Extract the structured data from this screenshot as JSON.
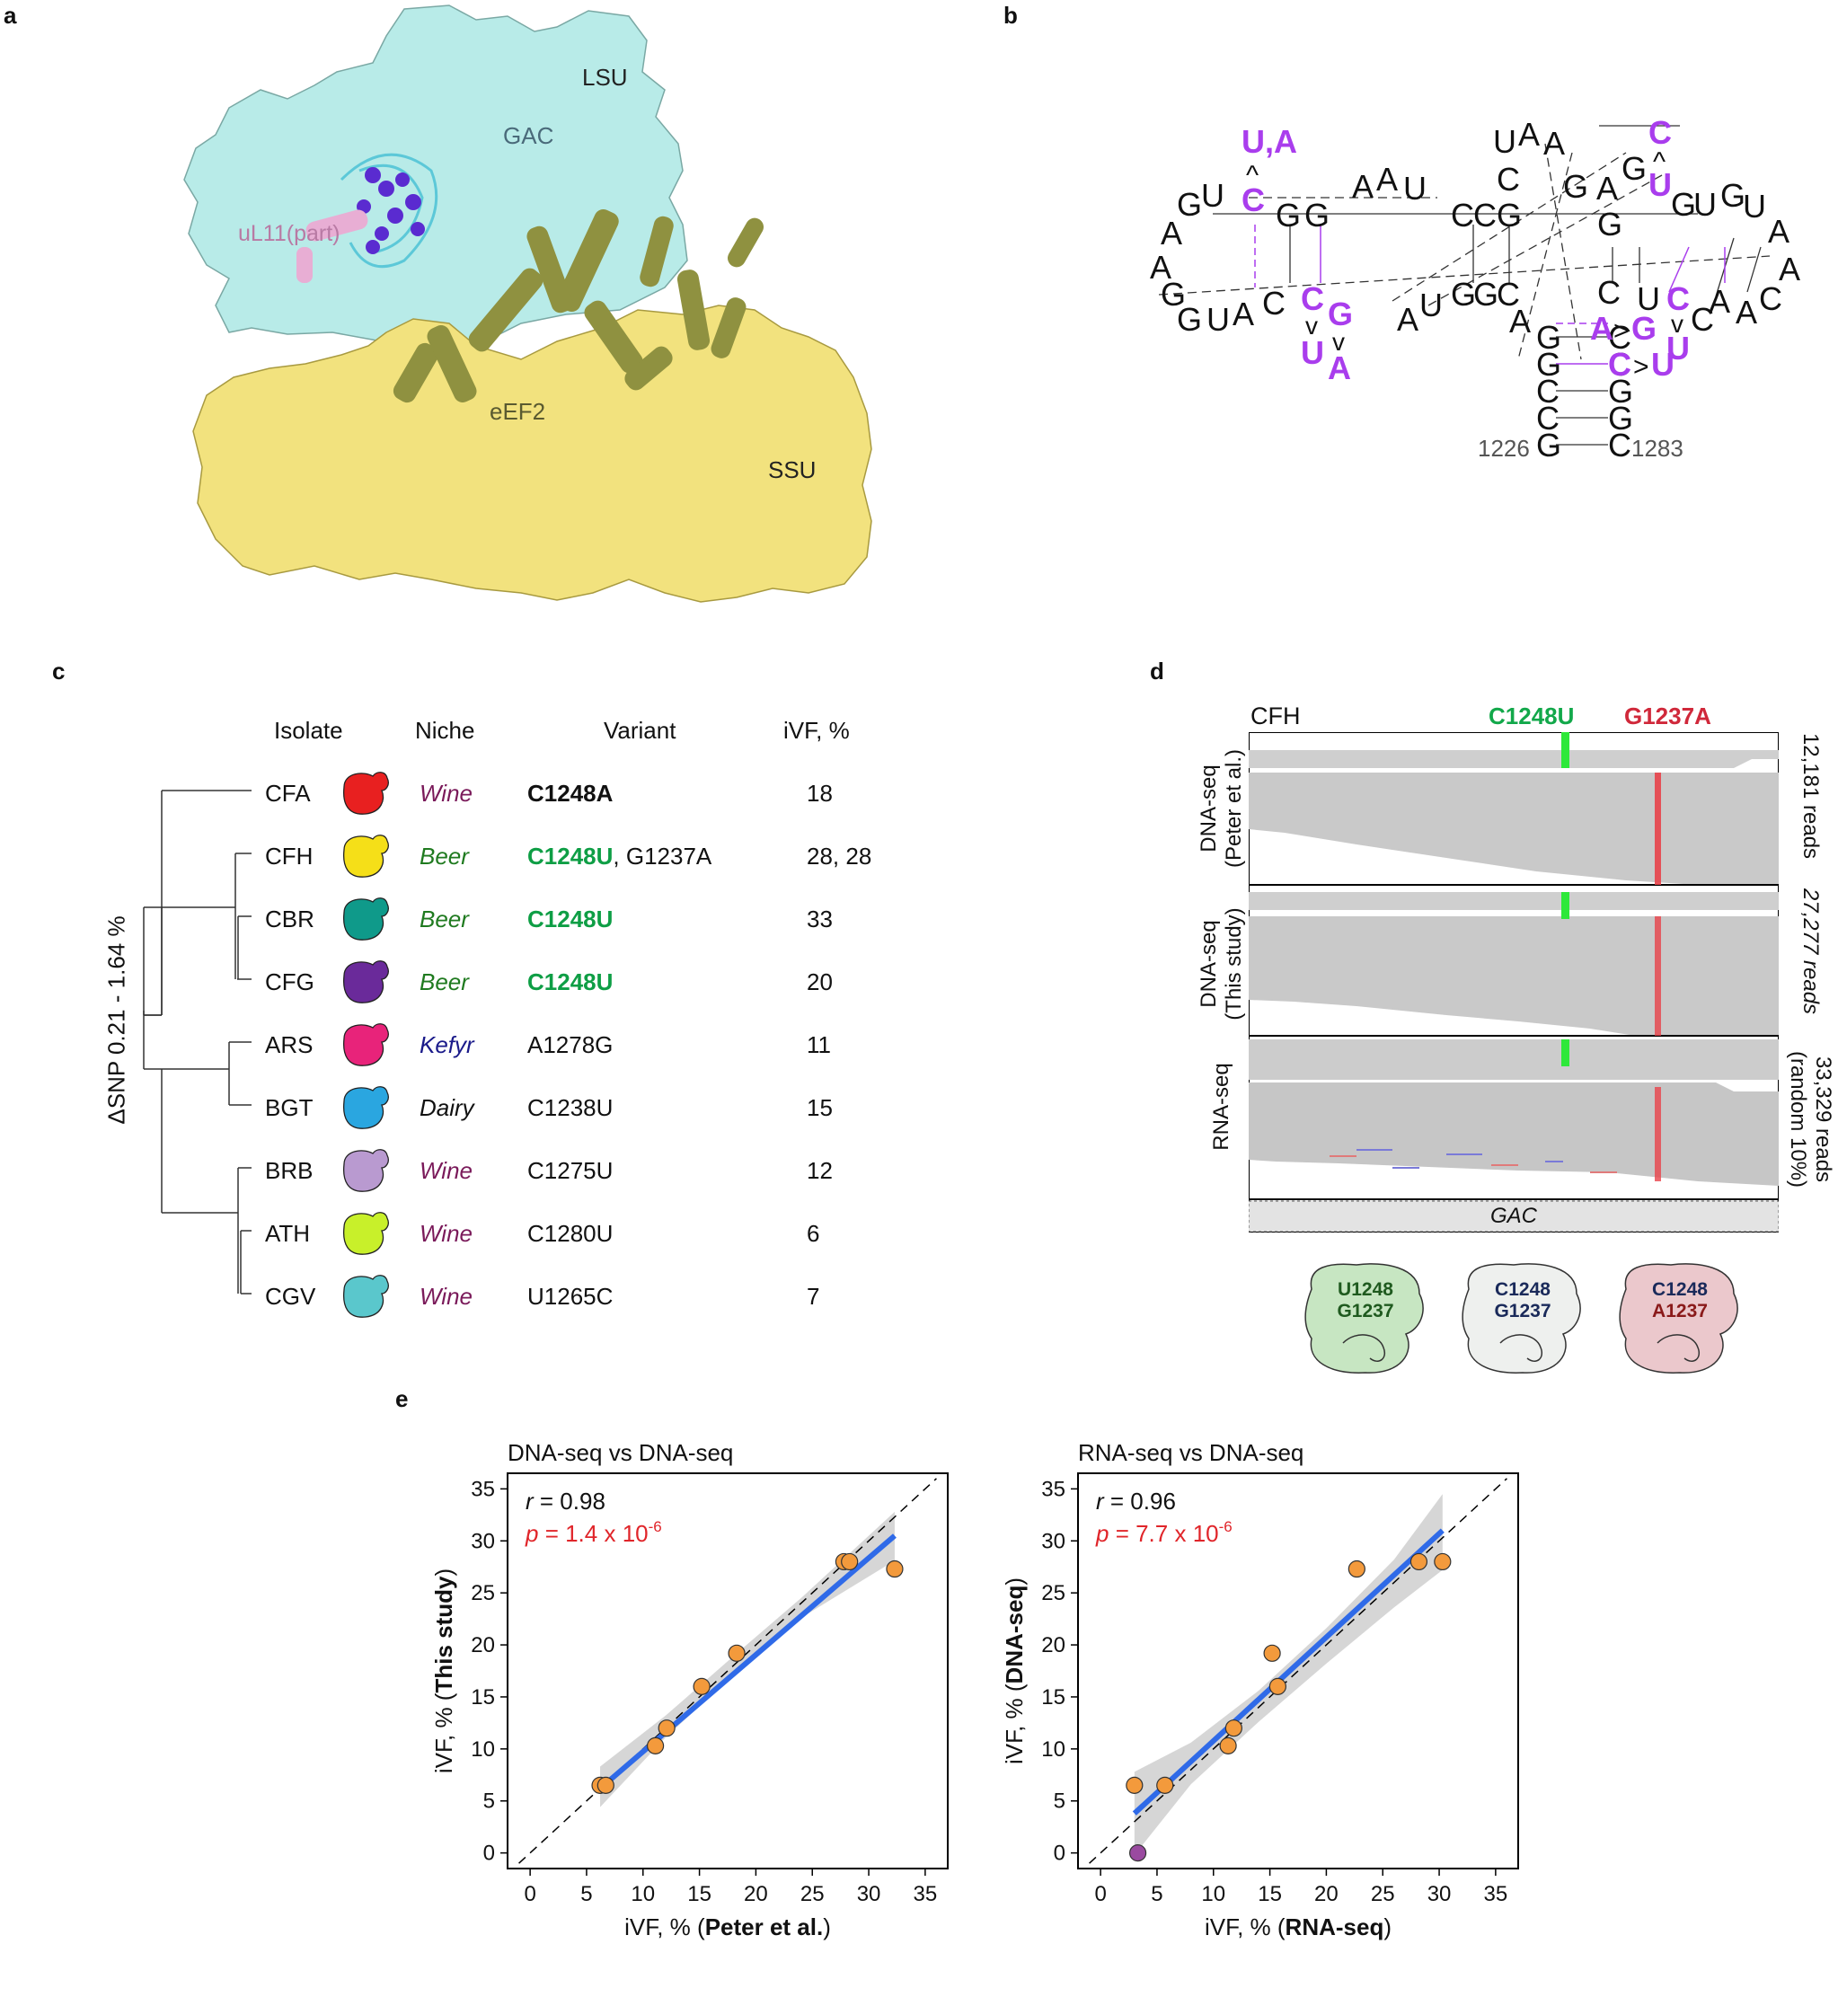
{
  "panel_labels": {
    "a": "a",
    "b": "b",
    "c": "c",
    "d": "d",
    "e": "e"
  },
  "panel_a": {
    "labels": {
      "lsu": "LSU",
      "gac": "GAC",
      "ul11": "uL11(part)",
      "eef2": "eEF2",
      "ssu": "SSU"
    },
    "colors": {
      "lsu": "#b8ebe8",
      "ssu": "#f2e27e",
      "eef2": "#8f9140",
      "ul11": "#e8aed4",
      "gac": "#5a2bd0"
    }
  },
  "panel_b": {
    "left_stem_top": [
      "G",
      "G"
    ],
    "mut1_top": "U,A",
    "mut1_caret": "^",
    "mut1_base": "C",
    "loop_left": [
      "G",
      "U",
      "A",
      "A",
      "G",
      "G",
      "U",
      "A",
      "C"
    ],
    "top_run": [
      "A",
      "A",
      "U"
    ],
    "mid_stem": [
      "C",
      "C",
      "G"
    ],
    "mid_stem_bottom": [
      "G",
      "G",
      "C"
    ],
    "bottom_run": [
      "U",
      "A"
    ],
    "mut2_base": "C",
    "mut2_caret": "v",
    "mut2_var": "U",
    "mut3_base": "G",
    "mut3_caret": "v",
    "mut3_var": "A",
    "hairpin_top": [
      "U",
      "A",
      "A",
      "C",
      "G"
    ],
    "right_top": [
      "A",
      "G"
    ],
    "mut4_top": "C",
    "mut4_caret": "^",
    "mut4_base": "U",
    "right_run": [
      "G",
      "U",
      "G",
      "U"
    ],
    "right_loop": [
      "A",
      "A",
      "C",
      "A",
      "A",
      "C"
    ],
    "right_inner": [
      "G",
      "C",
      "U"
    ],
    "mut5_base": "C",
    "mut5_caret": "v",
    "mut5_var": "U",
    "mut6": {
      "from": "A",
      "sym": ">",
      "to": "G"
    },
    "mut7": {
      "from": "C",
      "sym": ">",
      "to": "U"
    },
    "bottom_stem_left": [
      "A",
      "G",
      "G",
      "C",
      "C",
      "G"
    ],
    "bottom_stem_right": [
      "C",
      "C",
      "G",
      "G",
      "C"
    ],
    "num_left": "1226",
    "num_right": "1283",
    "colors": {
      "mutation": "#a93ded",
      "text": "#111111"
    }
  },
  "panel_c": {
    "headers": {
      "isolate": "Isolate",
      "niche": "Niche",
      "variant": "Variant",
      "ivf": "iVF, %"
    },
    "axis_label": "ΔSNP 0.21 - 1.64 %",
    "rows": [
      {
        "isolate": "CFA",
        "color": "#e82020",
        "niche": "Wine",
        "niche_color": "#7a1a5a",
        "v1": "C1248A",
        "v1_color": "#111111",
        "v2": "",
        "ivf": "18"
      },
      {
        "isolate": "CFH",
        "color": "#f5df18",
        "niche": "Beer",
        "niche_color": "#1f7a1f",
        "v1": "C1248U",
        "v1_color": "#0e9e45",
        "v2": ", G1237A",
        "ivf": "28, 28"
      },
      {
        "isolate": "CBR",
        "color": "#0f9a8a",
        "niche": "Beer",
        "niche_color": "#1f7a1f",
        "v1": "C1248U",
        "v1_color": "#0e9e45",
        "v2": "",
        "ivf": "33"
      },
      {
        "isolate": "CFG",
        "color": "#6a2a9a",
        "niche": "Beer",
        "niche_color": "#1f7a1f",
        "v1": "C1248U",
        "v1_color": "#0e9e45",
        "v2": "",
        "ivf": "20"
      },
      {
        "isolate": "ARS",
        "color": "#e8237a",
        "niche": "Kefyr",
        "niche_color": "#1a1a8a",
        "v1": "A1278G",
        "v1_color": "#111111",
        "v2": "",
        "ivf": "11"
      },
      {
        "isolate": "BGT",
        "color": "#2aa6e0",
        "niche": "Dairy",
        "niche_color": "#111111",
        "v1": "C1238U",
        "v1_color": "#111111",
        "v2": "",
        "ivf": "15"
      },
      {
        "isolate": "BRB",
        "color": "#b99ad0",
        "niche": "Wine",
        "niche_color": "#7a1a5a",
        "v1": "C1275U",
        "v1_color": "#111111",
        "v2": "",
        "ivf": "12"
      },
      {
        "isolate": "ATH",
        "color": "#c8f02a",
        "niche": "Wine",
        "niche_color": "#7a1a5a",
        "v1": "C1280U",
        "v1_color": "#111111",
        "v2": "",
        "ivf": "6"
      },
      {
        "isolate": "CGV",
        "color": "#5ac7cc",
        "niche": "Wine",
        "niche_color": "#7a1a5a",
        "v1": "U1265C",
        "v1_color": "#111111",
        "v2": "",
        "ivf": "7"
      }
    ]
  },
  "panel_d": {
    "strain": "CFH",
    "mark1": "C1248U",
    "mark1_color": "#12a84a",
    "mark2": "G1237A",
    "mark2_color": "#d0283a",
    "tracks": [
      {
        "label1": "DNA-seq",
        "label2": "(Peter et al.)",
        "reads1": "12,181 reads",
        "reads2": ""
      },
      {
        "label1": "DNA-seq",
        "label2": "(This study)",
        "reads1": "27,277 reads",
        "reads2": ""
      },
      {
        "label1": "RNA-seq",
        "label2": "",
        "reads1": "33,329 reads",
        "reads2": "(random 10%)"
      }
    ],
    "region": "GAC",
    "ribosomes": [
      {
        "line1": "U1248",
        "line2": "G1237",
        "fill": "#c7e6c2",
        "c1": "#1f5a1f",
        "c2": "#1f5a1f"
      },
      {
        "line1": "C1248",
        "line2": "G1237",
        "fill": "#eef0ee",
        "c1": "#1a2a5a",
        "c2": "#1a2a5a"
      },
      {
        "line1": "C1248",
        "line2": "A1237",
        "fill": "#ebc8cc",
        "c1": "#1a2a5a",
        "c2": "#8a1a1a"
      }
    ]
  },
  "panel_e": {
    "chart_data": [
      {
        "type": "scatter",
        "title": "DNA-seq vs DNA-seq",
        "xlabel_pre": "iVF, % (",
        "xlabel_bold": "Peter et al.",
        "xlabel_post": ")",
        "ylabel_pre": "iVF, % (",
        "ylabel_bold": "This study",
        "ylabel_post": ")",
        "xlim": [
          -2,
          37
        ],
        "ylim": [
          -1.5,
          36.5
        ],
        "ticks": [
          0,
          5,
          10,
          15,
          20,
          25,
          30,
          35
        ],
        "r_label": "r",
        "r_value": " = 0.98",
        "p_label": "p",
        "p_value": " = 1.4 x 10",
        "p_exp": "-6",
        "points": [
          [
            6.2,
            6.5
          ],
          [
            6.7,
            6.5
          ],
          [
            11.1,
            10.3
          ],
          [
            12.1,
            12
          ],
          [
            15.2,
            16
          ],
          [
            18.3,
            19.2
          ],
          [
            27.8,
            28
          ],
          [
            28.3,
            28
          ],
          [
            32.3,
            27.3
          ]
        ],
        "special_points": [],
        "fit": [
          [
            6.2,
            6.2
          ],
          [
            32.3,
            30.5
          ]
        ],
        "ci_upper": [
          [
            6.2,
            8.3
          ],
          [
            12,
            13.2
          ],
          [
            18,
            18.9
          ],
          [
            24,
            24.5
          ],
          [
            32.3,
            32.8
          ]
        ],
        "ci_lower": [
          [
            6.2,
            4.4
          ],
          [
            12,
            11.1
          ],
          [
            18,
            17.1
          ],
          [
            24,
            22.6
          ],
          [
            32.3,
            28.1
          ]
        ]
      },
      {
        "type": "scatter",
        "title": "RNA-seq vs DNA-seq",
        "xlabel_pre": "iVF, % (",
        "xlabel_bold": "RNA-seq",
        "xlabel_post": ")",
        "ylabel_pre": "iVF, % (",
        "ylabel_bold": "DNA-seq",
        "ylabel_post": ")",
        "xlim": [
          -2,
          37
        ],
        "ylim": [
          -1.5,
          36.5
        ],
        "ticks": [
          0,
          5,
          10,
          15,
          20,
          25,
          30,
          35
        ],
        "r_label": "r",
        "r_value": " = 0.96",
        "p_label": "p",
        "p_value": " = 7.7 x 10",
        "p_exp": "-6",
        "points": [
          [
            3,
            6.5
          ],
          [
            5.7,
            6.5
          ],
          [
            11.3,
            10.3
          ],
          [
            11.8,
            12
          ],
          [
            15.2,
            19.2
          ],
          [
            15.7,
            16
          ],
          [
            22.7,
            27.3
          ],
          [
            28.2,
            28
          ],
          [
            30.3,
            28
          ]
        ],
        "special_points": [
          [
            3.3,
            0
          ]
        ],
        "fit": [
          [
            3,
            3.8
          ],
          [
            30.3,
            31
          ]
        ],
        "ci_upper": [
          [
            3,
            7.8
          ],
          [
            8,
            10.6
          ],
          [
            14,
            15.6
          ],
          [
            20,
            21.6
          ],
          [
            26,
            28.2
          ],
          [
            30.3,
            34.5
          ]
        ],
        "ci_lower": [
          [
            3,
            -0.2
          ],
          [
            8,
            6.6
          ],
          [
            14,
            12.6
          ],
          [
            20,
            18.2
          ],
          [
            26,
            23.6
          ],
          [
            30.3,
            27.2
          ]
        ]
      }
    ],
    "colors": {
      "point": "#f39a3c",
      "point_special": "#9a4aa0",
      "fit": "#2f6ae8",
      "ci": "#cfcfcf",
      "p": "#e0252a"
    }
  }
}
